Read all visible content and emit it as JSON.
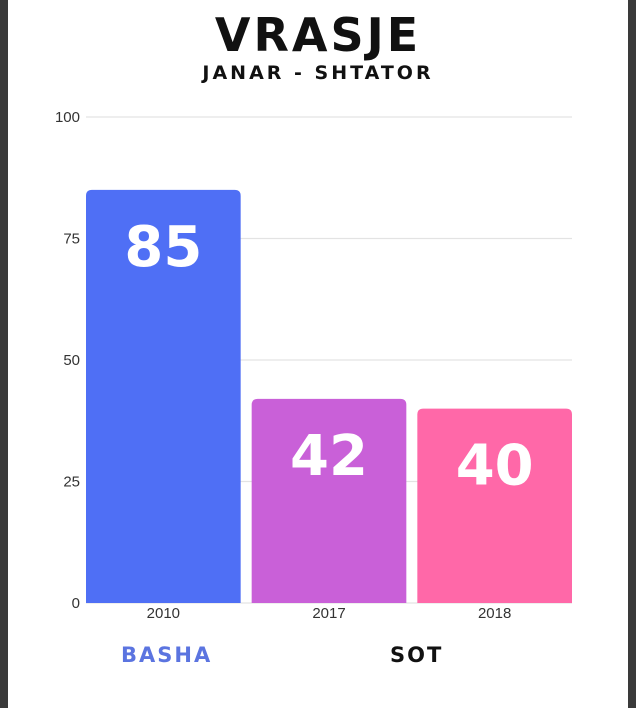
{
  "chart_data": {
    "type": "bar",
    "title": "VRASJE",
    "subtitle": "JANAR - SHTATOR",
    "categories": [
      "2010",
      "2017",
      "2018"
    ],
    "values": [
      85,
      42,
      40
    ],
    "bar_colors": [
      "#4f6ff5",
      "#c960d8",
      "#ff68a8"
    ],
    "yticks": [
      "0",
      "25",
      "50",
      "75",
      "100"
    ],
    "ylim": [
      0,
      100
    ],
    "grid": true,
    "legend": [
      {
        "label": "BASHA",
        "color": "#5b74e0"
      },
      {
        "label": "SOT",
        "color": "#111111"
      }
    ]
  }
}
